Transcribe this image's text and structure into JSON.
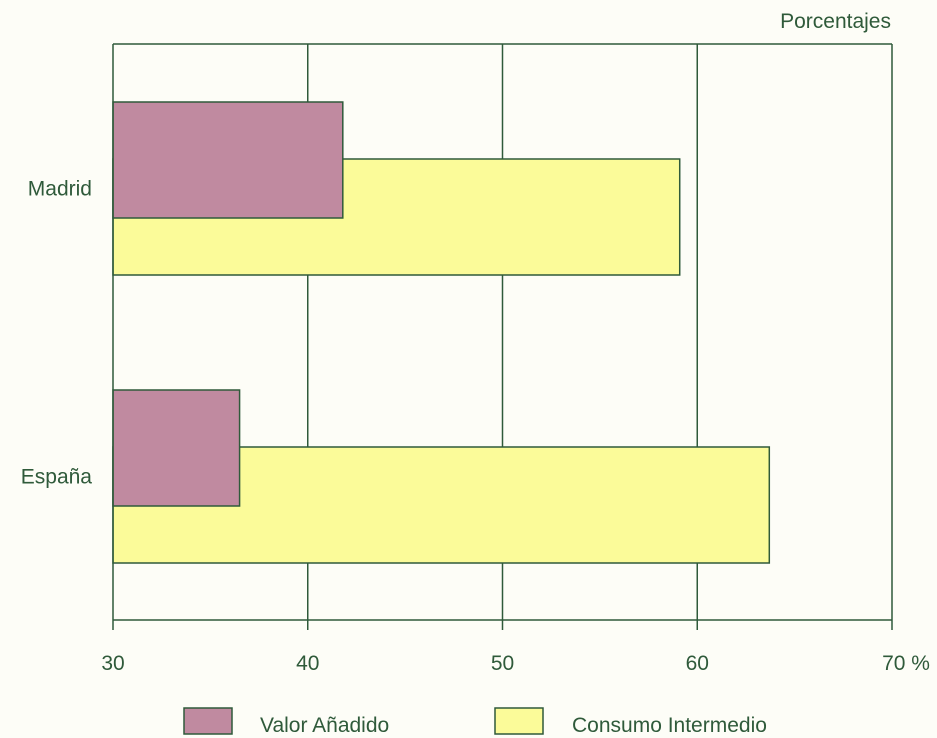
{
  "chart_data": {
    "type": "bar",
    "orientation": "horizontal",
    "unit_label": "Porcentajes",
    "categories": [
      "Madrid",
      "España"
    ],
    "series": [
      {
        "name": "Valor Añadido",
        "values": [
          41.8,
          36.5
        ]
      },
      {
        "name": "Consumo Intermedio",
        "values": [
          59.1,
          63.7
        ]
      }
    ],
    "x_ticks": [
      "30",
      "40",
      "50",
      "60",
      "70 %"
    ],
    "xlim": [
      30,
      70
    ],
    "grid": true,
    "legend_position": "bottom",
    "colors": {
      "Valor Añadido": "#c08aa0",
      "Consumo Intermedio": "#fbfb99",
      "axis": "#2f5a3a",
      "text": "#2f5a3a"
    }
  }
}
